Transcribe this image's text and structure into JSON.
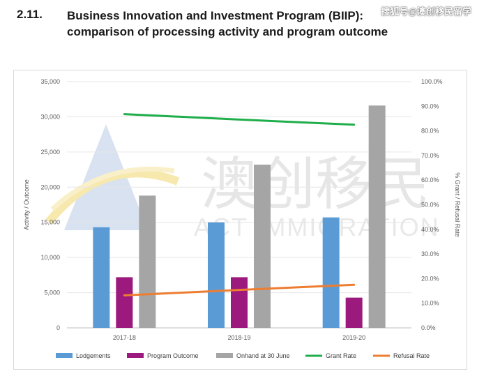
{
  "header": {
    "section_number": "2.11.",
    "title_line1": "Business Innovation and Investment Program (BIIP):",
    "title_line2": "comparison of processing activity and program outcome"
  },
  "corner_watermark": "搜狐号@澳创移民留学",
  "watermark": {
    "chinese": "澳创移民",
    "english": "ACT IMMIGRATION"
  },
  "colors": {
    "lodgements": "#5b9bd5",
    "program_outcome": "#9c1a7d",
    "onhand": "#a5a5a5",
    "grant_rate": "#1fae4b",
    "refusal_rate": "#ed7d31"
  },
  "chart_data": {
    "type": "bar",
    "title": "Business Innovation and Investment Program (BIIP): comparison of processing activity and program outcome",
    "categories": [
      "2017-18",
      "2018-19",
      "2019-20"
    ],
    "series": [
      {
        "name": "Lodgements",
        "axis": "left",
        "type": "bar",
        "values": [
          14300,
          15000,
          15700
        ]
      },
      {
        "name": "Program Outcome",
        "axis": "left",
        "type": "bar",
        "values": [
          7200,
          7200,
          4300
        ]
      },
      {
        "name": "Onhand at 30 June",
        "axis": "left",
        "type": "bar",
        "values": [
          18800,
          23200,
          31600
        ]
      },
      {
        "name": "Grant Rate",
        "axis": "right",
        "type": "line",
        "values": [
          86.8,
          84.6,
          82.5
        ]
      },
      {
        "name": "Refusal Rate",
        "axis": "right",
        "type": "line",
        "values": [
          13.2,
          15.4,
          17.5
        ]
      }
    ],
    "ylabel": "Activity / Outcome",
    "y2label": "% Grant / Refusal Rate",
    "ylim": [
      0,
      35000
    ],
    "y2lim": [
      0,
      100
    ],
    "yticks": [
      "0",
      "5,000",
      "10,000",
      "15,000",
      "20,000",
      "25,000",
      "30,000",
      "35,000"
    ],
    "y2ticks": [
      "0.0%",
      "10.0%",
      "20.0%",
      "30.0%",
      "40.0%",
      "50.0%",
      "60.0%",
      "70.0%",
      "80.0%",
      "90.0%",
      "100.0%"
    ],
    "legend": [
      "Lodgements",
      "Program Outcome",
      "Onhand at 30 June",
      "Grant Rate",
      "Refusal Rate"
    ],
    "legend_position": "bottom"
  }
}
